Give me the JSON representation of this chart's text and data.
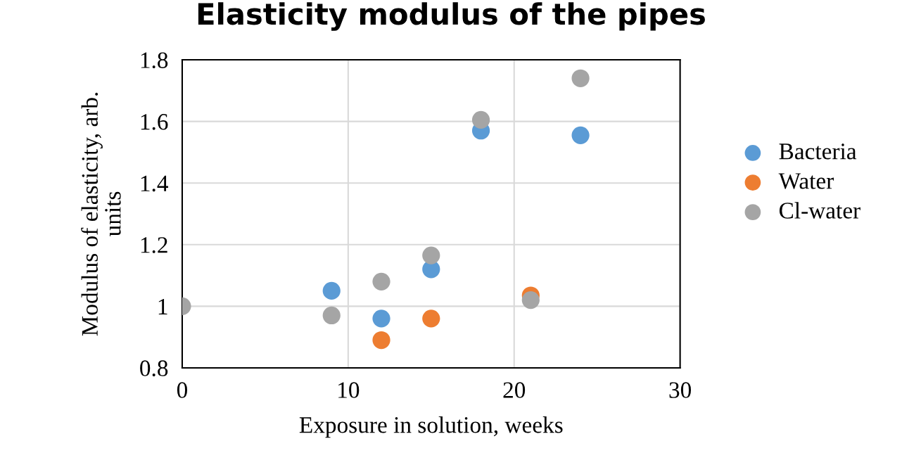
{
  "chart_data": {
    "type": "scatter",
    "title": "Elasticity modulus of the pipes",
    "xlabel": "Exposure in solution, weeks",
    "ylabel": "Modulus of elasticity, arb.\nunits",
    "series": [
      {
        "name": "Bacteria",
        "color": "#5b9bd5",
        "x": [
          9,
          12,
          15,
          18,
          24
        ],
        "values": [
          1.05,
          0.96,
          1.12,
          1.57,
          1.555
        ]
      },
      {
        "name": "Water",
        "color": "#ed7d31",
        "x": [
          12,
          15,
          21
        ],
        "values": [
          0.89,
          0.96,
          1.035
        ]
      },
      {
        "name": "Cl-water",
        "color": "#a5a5a5",
        "x": [
          0,
          9,
          12,
          15,
          18,
          21,
          24
        ],
        "values": [
          1.0,
          0.97,
          1.08,
          1.165,
          1.605,
          1.02,
          1.74
        ]
      }
    ],
    "xlim": [
      0,
      30
    ],
    "xticks": [
      0,
      10,
      20,
      30
    ],
    "ylim": [
      0.8,
      1.8
    ],
    "yticks": [
      {
        "value": 0.8,
        "label": "0.8"
      },
      {
        "value": 1.0,
        "label": "1"
      },
      {
        "value": 1.2,
        "label": "1.2"
      },
      {
        "value": 1.4,
        "label": "1.4"
      },
      {
        "value": 1.6,
        "label": "1.6"
      },
      {
        "value": 1.8,
        "label": "1.8"
      }
    ],
    "grid": true,
    "legend": "right",
    "marker": "circle"
  }
}
